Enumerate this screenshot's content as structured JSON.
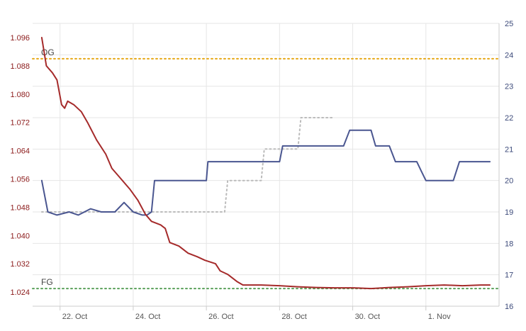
{
  "chart_data": {
    "type": "line",
    "title": "",
    "x_axis": {
      "type": "datetime",
      "ticks": [
        "22. Oct",
        "24. Oct",
        "26. Oct",
        "28. Oct",
        "30. Oct",
        "1. Nov"
      ],
      "tick_dates": [
        "2023-10-22",
        "2023-10-24",
        "2023-10-26",
        "2023-10-28",
        "2023-10-30",
        "2023-11-01"
      ],
      "range": [
        "2023-10-21T06:00",
        "2023-11-03T00:00"
      ]
    },
    "y_left": {
      "label": "",
      "range": [
        1.02,
        1.1
      ],
      "ticks": [
        "1.024",
        "1.032",
        "1.040",
        "1.048",
        "1.056",
        "1.064",
        "1.072",
        "1.080",
        "1.088",
        "1.096"
      ],
      "color": "#8b1a1a"
    },
    "y_right": {
      "label": "",
      "range": [
        16,
        25
      ],
      "ticks": [
        "16",
        "17",
        "18",
        "19",
        "20",
        "21",
        "22",
        "23",
        "24",
        "25"
      ],
      "color": "#3c4a7a"
    },
    "grid": true,
    "reference_lines": [
      {
        "label": "OG",
        "value": 1.09,
        "axis": "left",
        "color": "#e6a817",
        "style": "dotted"
      },
      {
        "label": "FG",
        "value": 1.025,
        "axis": "left",
        "color": "#5aa05a",
        "style": "dotted"
      }
    ],
    "series": [
      {
        "axis": "left",
        "color": "#a52a2a",
        "style": "solid",
        "points": [
          [
            "2023-10-21T12:00",
            1.096
          ],
          [
            "2023-10-21T15:00",
            1.088
          ],
          [
            "2023-10-21T19:00",
            1.086
          ],
          [
            "2023-10-21T22:00",
            1.084
          ],
          [
            "2023-10-22T01:00",
            1.077
          ],
          [
            "2023-10-22T03:00",
            1.076
          ],
          [
            "2023-10-22T05:00",
            1.078
          ],
          [
            "2023-10-22T09:00",
            1.077
          ],
          [
            "2023-10-22T14:00",
            1.075
          ],
          [
            "2023-10-22T18:00",
            1.072
          ],
          [
            "2023-10-23T00:00",
            1.067
          ],
          [
            "2023-10-23T06:00",
            1.063
          ],
          [
            "2023-10-23T10:00",
            1.059
          ],
          [
            "2023-10-23T16:00",
            1.056
          ],
          [
            "2023-10-23T22:00",
            1.053
          ],
          [
            "2023-10-24T03:00",
            1.05
          ],
          [
            "2023-10-24T08:00",
            1.046
          ],
          [
            "2023-10-24T12:00",
            1.044
          ],
          [
            "2023-10-24T18:00",
            1.043
          ],
          [
            "2023-10-24T21:00",
            1.042
          ],
          [
            "2023-10-25T00:00",
            1.038
          ],
          [
            "2023-10-25T06:00",
            1.037
          ],
          [
            "2023-10-25T12:00",
            1.035
          ],
          [
            "2023-10-25T18:00",
            1.034
          ],
          [
            "2023-10-25T23:00",
            1.033
          ],
          [
            "2023-10-26T06:00",
            1.032
          ],
          [
            "2023-10-26T09:00",
            1.03
          ],
          [
            "2023-10-26T14:00",
            1.029
          ],
          [
            "2023-10-26T20:00",
            1.027
          ],
          [
            "2023-10-27T00:00",
            1.026
          ],
          [
            "2023-10-27T12:00",
            1.026
          ],
          [
            "2023-10-28T00:00",
            1.0258
          ],
          [
            "2023-10-28T12:00",
            1.0255
          ],
          [
            "2023-10-29T00:00",
            1.0253
          ],
          [
            "2023-10-29T12:00",
            1.0252
          ],
          [
            "2023-10-30T00:00",
            1.0252
          ],
          [
            "2023-10-30T12:00",
            1.025
          ],
          [
            "2023-10-31T00:00",
            1.0253
          ],
          [
            "2023-10-31T12:00",
            1.0255
          ],
          [
            "2023-11-01T00:00",
            1.0258
          ],
          [
            "2023-11-01T12:00",
            1.026
          ],
          [
            "2023-11-02T00:00",
            1.0258
          ],
          [
            "2023-11-02T12:00",
            1.026
          ],
          [
            "2023-11-02T18:00",
            1.026
          ]
        ]
      },
      {
        "axis": "right",
        "color": "#4a5690",
        "style": "solid",
        "points": [
          [
            "2023-10-21T12:00",
            20.0
          ],
          [
            "2023-10-21T16:00",
            19.0
          ],
          [
            "2023-10-21T22:00",
            18.9
          ],
          [
            "2023-10-22T06:00",
            19.0
          ],
          [
            "2023-10-22T12:00",
            18.9
          ],
          [
            "2023-10-22T20:00",
            19.1
          ],
          [
            "2023-10-23T03:00",
            19.0
          ],
          [
            "2023-10-23T12:00",
            19.0
          ],
          [
            "2023-10-23T18:00",
            19.3
          ],
          [
            "2023-10-24T00:00",
            19.0
          ],
          [
            "2023-10-24T06:00",
            18.9
          ],
          [
            "2023-10-24T09:00",
            18.9
          ],
          [
            "2023-10-24T12:00",
            19.0
          ],
          [
            "2023-10-24T14:00",
            20.0
          ],
          [
            "2023-10-26T00:00",
            20.0
          ],
          [
            "2023-10-26T01:00",
            20.6
          ],
          [
            "2023-10-28T00:00",
            20.6
          ],
          [
            "2023-10-28T02:00",
            21.1
          ],
          [
            "2023-10-29T18:00",
            21.1
          ],
          [
            "2023-10-29T22:00",
            21.6
          ],
          [
            "2023-10-30T12:00",
            21.6
          ],
          [
            "2023-10-30T15:00",
            21.1
          ],
          [
            "2023-10-31T00:00",
            21.1
          ],
          [
            "2023-10-31T04:00",
            20.6
          ],
          [
            "2023-10-31T18:00",
            20.6
          ],
          [
            "2023-10-31T21:00",
            20.3
          ],
          [
            "2023-11-01T00:00",
            20.0
          ],
          [
            "2023-11-01T18:00",
            20.0
          ],
          [
            "2023-11-01T22:00",
            20.6
          ],
          [
            "2023-11-02T18:00",
            20.6
          ]
        ]
      },
      {
        "axis": "right",
        "color": "#bbbbbb",
        "style": "dotted",
        "points": [
          [
            "2023-10-21T12:00",
            19.0
          ],
          [
            "2023-10-26T12:00",
            19.0
          ],
          [
            "2023-10-26T14:00",
            20.0
          ],
          [
            "2023-10-27T12:00",
            20.0
          ],
          [
            "2023-10-27T14:00",
            21.0
          ],
          [
            "2023-10-28T12:00",
            21.0
          ],
          [
            "2023-10-28T14:00",
            22.0
          ],
          [
            "2023-10-29T12:00",
            22.0
          ]
        ]
      }
    ]
  }
}
